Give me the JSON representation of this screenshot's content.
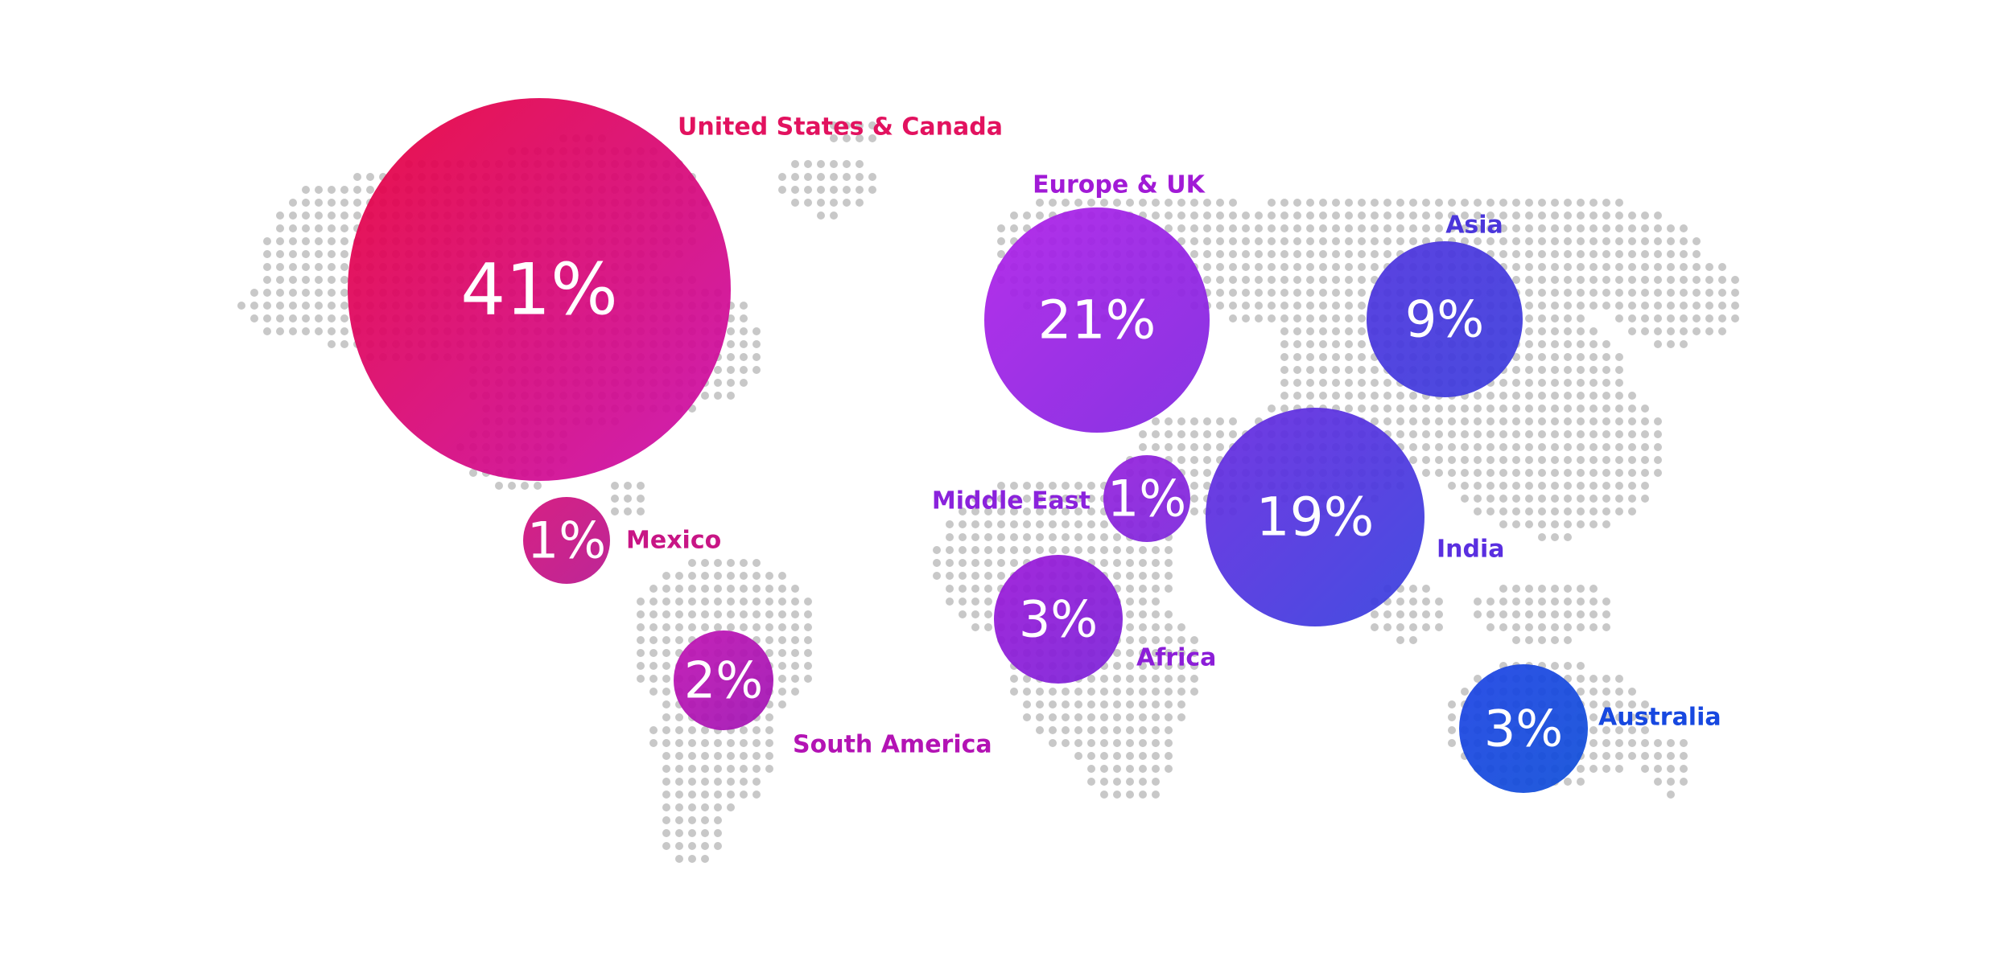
{
  "map": {
    "regions": [
      {
        "id": "us-canada",
        "name": "United States & Canada",
        "value": "41%",
        "share": 41,
        "color": "#e2125f"
      },
      {
        "id": "mexico",
        "name": "Mexico",
        "value": "1%",
        "share": 1,
        "color": "#c81585"
      },
      {
        "id": "south-america",
        "name": "South America",
        "value": "2%",
        "share": 2,
        "color": "#b313b4"
      },
      {
        "id": "europe-uk",
        "name": "Europe & UK",
        "value": "21%",
        "share": 21,
        "color": "#a11ad6"
      },
      {
        "id": "middle-east",
        "name": "Middle East",
        "value": "1%",
        "share": 1,
        "color": "#8a22dc"
      },
      {
        "id": "africa",
        "name": "Africa",
        "value": "3%",
        "share": 3,
        "color": "#8c1ed8"
      },
      {
        "id": "asia",
        "name": "Asia",
        "value": "9%",
        "share": 9,
        "color": "#4a36db"
      },
      {
        "id": "india",
        "name": "India",
        "value": "19%",
        "share": 19,
        "color": "#5a2fe0"
      },
      {
        "id": "australia",
        "name": "Australia",
        "value": "3%",
        "share": 3,
        "color": "#1748e0"
      }
    ],
    "dot_color": "#c8c8c8"
  }
}
